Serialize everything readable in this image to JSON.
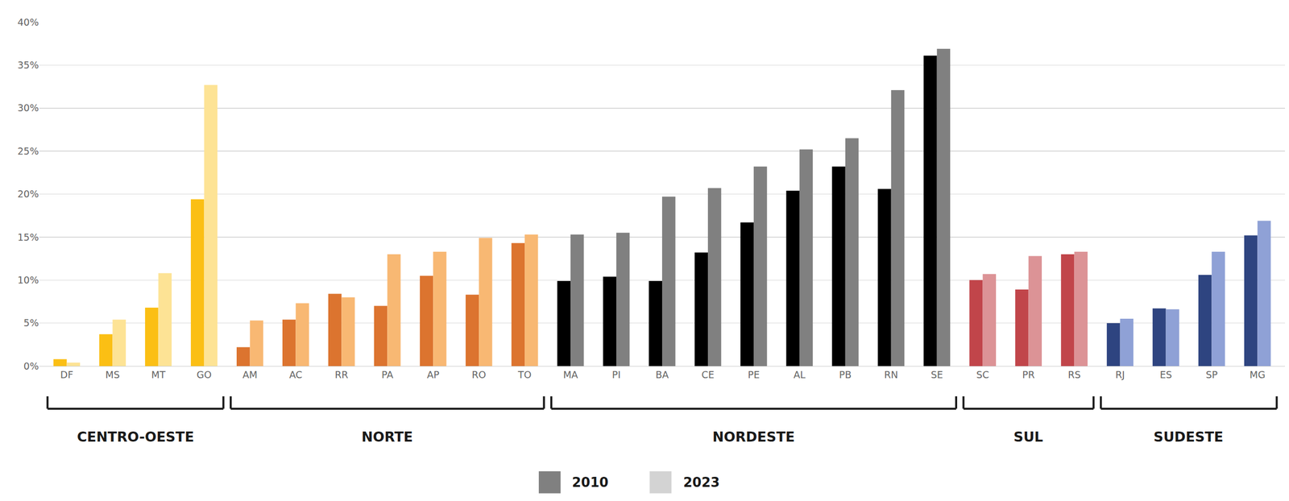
{
  "chart_data": {
    "type": "bar",
    "categories": [
      "DF",
      "MS",
      "MT",
      "GO",
      "AM",
      "AC",
      "RR",
      "PA",
      "AP",
      "RO",
      "TO",
      "MA",
      "PI",
      "BA",
      "CE",
      "PE",
      "AL",
      "PB",
      "RN",
      "SE",
      "SC",
      "PR",
      "RS",
      "RJ",
      "ES",
      "SP",
      "MG"
    ],
    "series": [
      {
        "name": "2010",
        "color": "#808080",
        "values": [
          0.8,
          3.7,
          6.8,
          19.4,
          2.2,
          5.4,
          8.4,
          7.0,
          10.5,
          8.3,
          14.3,
          9.9,
          10.4,
          9.9,
          13.2,
          16.7,
          20.4,
          23.2,
          20.6,
          36.1,
          10.0,
          8.9,
          13.0,
          5.0,
          6.7,
          10.6,
          15.2
        ],
        "colors": [
          "#fbbf14",
          "#fbbf14",
          "#fbbf14",
          "#fbbf14",
          "#dc742f",
          "#dc742f",
          "#dc742f",
          "#dc742f",
          "#dc742f",
          "#dc742f",
          "#dc742f",
          "#000000",
          "#000000",
          "#000000",
          "#000000",
          "#000000",
          "#000000",
          "#000000",
          "#000000",
          "#000000",
          "#c1454a",
          "#c1454a",
          "#c1454a",
          "#2e4480",
          "#2e4480",
          "#2e4480",
          "#2e4480"
        ]
      },
      {
        "name": "2023",
        "color": "#d3d3d3",
        "values": [
          0.4,
          5.4,
          10.8,
          32.7,
          5.3,
          7.3,
          8.0,
          13.0,
          13.3,
          14.9,
          15.3,
          15.3,
          15.5,
          19.7,
          20.7,
          23.2,
          25.2,
          26.5,
          32.1,
          36.9,
          10.7,
          12.8,
          13.3,
          5.5,
          6.6,
          13.3,
          16.9
        ],
        "colors": [
          "#fde395",
          "#fde395",
          "#fde395",
          "#fde395",
          "#f8b873",
          "#f8b873",
          "#f8b873",
          "#f8b873",
          "#f8b873",
          "#f8b873",
          "#f8b873",
          "#808080",
          "#808080",
          "#808080",
          "#808080",
          "#808080",
          "#808080",
          "#808080",
          "#808080",
          "#808080",
          "#dc9396",
          "#dc9396",
          "#dc9396",
          "#8fa1d6",
          "#8fa1d6",
          "#8fa1d6",
          "#8fa1d6"
        ]
      }
    ],
    "groups": [
      {
        "label": "CENTRO-OESTE",
        "categories": [
          "DF",
          "MS",
          "MT",
          "GO"
        ]
      },
      {
        "label": "NORTE",
        "categories": [
          "AM",
          "AC",
          "RR",
          "PA",
          "AP",
          "RO",
          "TO"
        ]
      },
      {
        "label": "NORDESTE",
        "categories": [
          "MA",
          "PI",
          "BA",
          "CE",
          "PE",
          "AL",
          "PB",
          "RN",
          "SE"
        ]
      },
      {
        "label": "SUL",
        "categories": [
          "SC",
          "PR",
          "RS"
        ]
      },
      {
        "label": "SUDESTE",
        "categories": [
          "RJ",
          "ES",
          "SP",
          "MG"
        ]
      }
    ],
    "ylim": [
      0,
      40
    ],
    "yticks": [
      {
        "value": 0,
        "label": "0%"
      },
      {
        "value": 5,
        "label": "5%"
      },
      {
        "value": 10,
        "label": "10%"
      },
      {
        "value": 15,
        "label": "15%"
      },
      {
        "value": 20,
        "label": "20%"
      },
      {
        "value": 25,
        "label": "25%"
      },
      {
        "value": 30,
        "label": "30%"
      },
      {
        "value": 35,
        "label": "35%"
      },
      {
        "value": 40,
        "label": "40%"
      }
    ],
    "grid": true,
    "legend": "bottom"
  }
}
